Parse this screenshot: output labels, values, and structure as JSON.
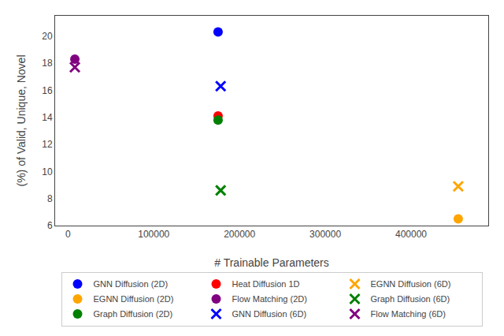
{
  "chart_data": {
    "type": "scatter",
    "xlabel": "# Trainable Parameters",
    "ylabel": "(%) of Valid, Unique, Novel",
    "xlim": [
      -15000,
      490000
    ],
    "ylim": [
      6,
      21.5
    ],
    "xticks": [
      0,
      100000,
      200000,
      300000,
      400000
    ],
    "yticks": [
      6,
      8,
      10,
      12,
      14,
      16,
      18,
      20
    ],
    "grid": false,
    "legend": "bottom",
    "series": [
      {
        "name": "GNN Diffusion (2D)",
        "color": "#0000ff",
        "marker": "circle",
        "x": [
          175000
        ],
        "values": [
          20.3
        ]
      },
      {
        "name": "Heat Diffusion 1D",
        "color": "#ff0000",
        "marker": "circle",
        "x": [
          175000
        ],
        "values": [
          14.1
        ]
      },
      {
        "name": "EGNN Diffusion (6D)",
        "color": "#ffa500",
        "marker": "x",
        "x": [
          455000
        ],
        "values": [
          8.9
        ]
      },
      {
        "name": "EGNN Diffusion (2D)",
        "color": "#ffa500",
        "marker": "circle",
        "x": [
          455000
        ],
        "values": [
          6.5
        ]
      },
      {
        "name": "Flow Matching (2D)",
        "color": "#800080",
        "marker": "circle",
        "x": [
          8000
        ],
        "values": [
          18.3
        ]
      },
      {
        "name": "Graph Diffusion (6D)",
        "color": "#008000",
        "marker": "x",
        "x": [
          178000
        ],
        "values": [
          8.6
        ]
      },
      {
        "name": "Graph Diffusion (2D)",
        "color": "#008000",
        "marker": "circle",
        "x": [
          175000
        ],
        "values": [
          13.8
        ]
      },
      {
        "name": "GNN Diffusion (6D)",
        "color": "#0000ff",
        "marker": "x",
        "x": [
          178000
        ],
        "values": [
          16.3
        ]
      },
      {
        "name": "Flow Matching (6D)",
        "color": "#800080",
        "marker": "x",
        "x": [
          8000
        ],
        "values": [
          17.7
        ]
      }
    ]
  }
}
